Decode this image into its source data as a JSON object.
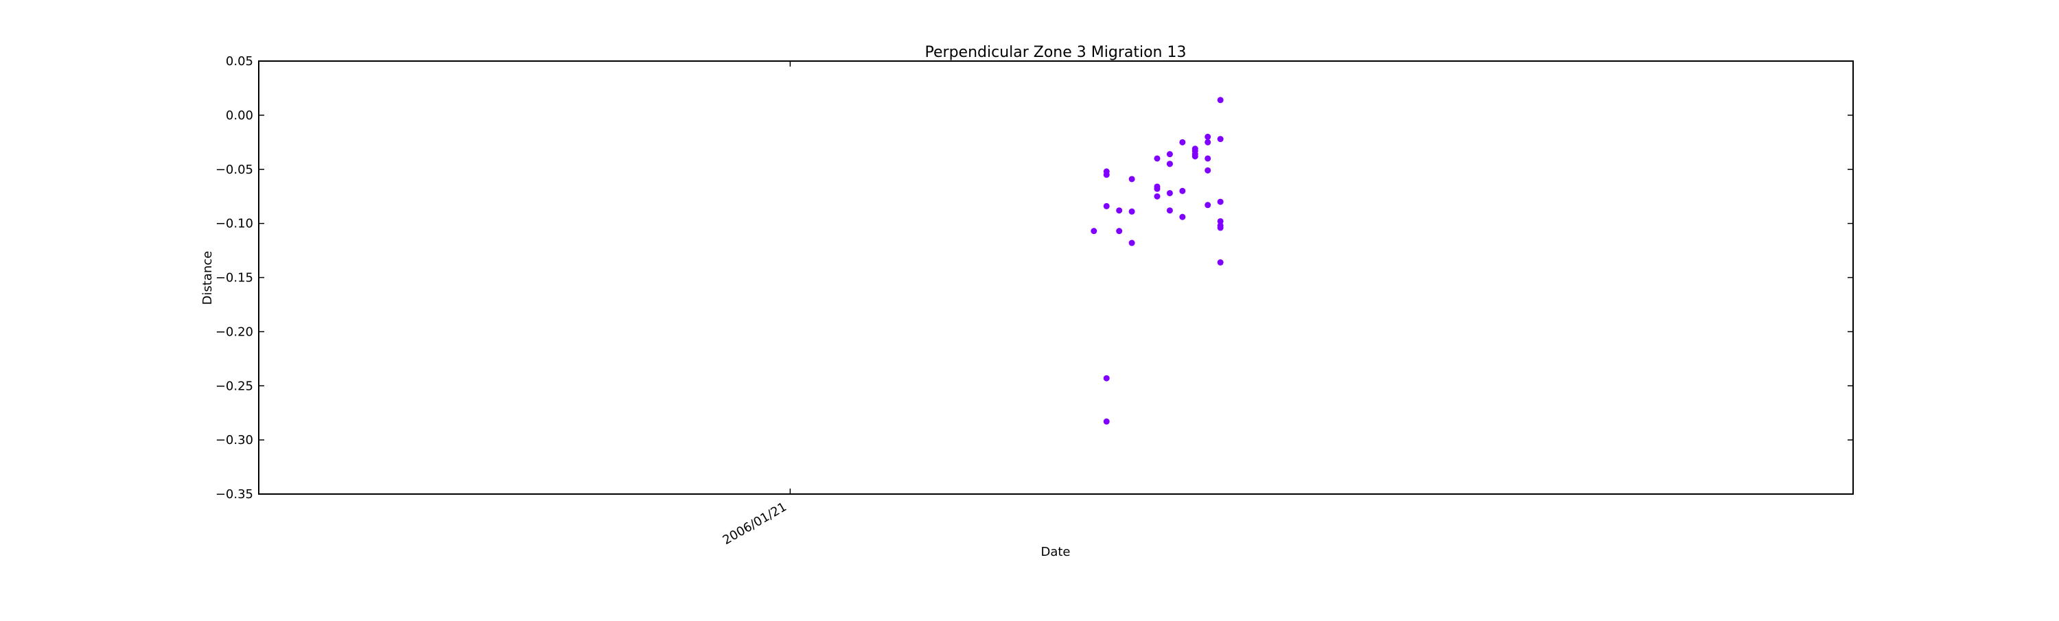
{
  "chart_data": {
    "type": "scatter",
    "title": "Perpendicular Zone 3 Migration 13",
    "xlabel": "Date",
    "ylabel": "Distance",
    "x_axis_kind": "date",
    "xlim": [
      "2005-12-10",
      "2006-04-15"
    ],
    "ylim": [
      -0.35,
      0.05
    ],
    "x_ticks": [
      {
        "date": "2006-01-21",
        "label": "2006/01/21"
      }
    ],
    "y_ticks": [
      {
        "value": 0.05,
        "label": "0.05"
      },
      {
        "value": 0.0,
        "label": "0.00"
      },
      {
        "value": -0.05,
        "label": "−0.05"
      },
      {
        "value": -0.1,
        "label": "−0.10"
      },
      {
        "value": -0.15,
        "label": "−0.15"
      },
      {
        "value": -0.2,
        "label": "−0.20"
      },
      {
        "value": -0.25,
        "label": "−0.25"
      },
      {
        "value": -0.3,
        "label": "−0.30"
      },
      {
        "value": -0.35,
        "label": "−0.35"
      }
    ],
    "grid": false,
    "marker_color": "#8000ff",
    "series": [
      {
        "points": [
          {
            "x": "2006-02-14",
            "y": -0.107
          },
          {
            "x": "2006-02-15",
            "y": -0.052
          },
          {
            "x": "2006-02-15",
            "y": -0.055
          },
          {
            "x": "2006-02-15",
            "y": -0.084
          },
          {
            "x": "2006-02-15",
            "y": -0.243
          },
          {
            "x": "2006-02-15",
            "y": -0.283
          },
          {
            "x": "2006-02-16",
            "y": -0.088
          },
          {
            "x": "2006-02-16",
            "y": -0.107
          },
          {
            "x": "2006-02-17",
            "y": -0.059
          },
          {
            "x": "2006-02-17",
            "y": -0.089
          },
          {
            "x": "2006-02-17",
            "y": -0.118
          },
          {
            "x": "2006-02-19",
            "y": -0.075
          },
          {
            "x": "2006-02-19",
            "y": -0.04
          },
          {
            "x": "2006-02-19",
            "y": -0.066
          },
          {
            "x": "2006-02-19",
            "y": -0.068
          },
          {
            "x": "2006-02-20",
            "y": -0.036
          },
          {
            "x": "2006-02-20",
            "y": -0.045
          },
          {
            "x": "2006-02-20",
            "y": -0.045
          },
          {
            "x": "2006-02-20",
            "y": -0.088
          },
          {
            "x": "2006-02-20",
            "y": -0.072
          },
          {
            "x": "2006-02-21",
            "y": -0.07
          },
          {
            "x": "2006-02-21",
            "y": -0.094
          },
          {
            "x": "2006-02-21",
            "y": -0.025
          },
          {
            "x": "2006-02-22",
            "y": -0.036
          },
          {
            "x": "2006-02-22",
            "y": -0.033
          },
          {
            "x": "2006-02-22",
            "y": -0.038
          },
          {
            "x": "2006-02-22",
            "y": -0.031
          },
          {
            "x": "2006-02-23",
            "y": -0.025
          },
          {
            "x": "2006-02-23",
            "y": -0.02
          },
          {
            "x": "2006-02-23",
            "y": -0.04
          },
          {
            "x": "2006-02-23",
            "y": -0.051
          },
          {
            "x": "2006-02-23",
            "y": -0.083
          },
          {
            "x": "2006-02-24",
            "y": -0.022
          },
          {
            "x": "2006-02-24",
            "y": 0.014
          },
          {
            "x": "2006-02-24",
            "y": -0.08
          },
          {
            "x": "2006-02-24",
            "y": -0.098
          },
          {
            "x": "2006-02-24",
            "y": -0.102
          },
          {
            "x": "2006-02-24",
            "y": -0.104
          },
          {
            "x": "2006-02-24",
            "y": -0.136
          }
        ]
      }
    ]
  }
}
